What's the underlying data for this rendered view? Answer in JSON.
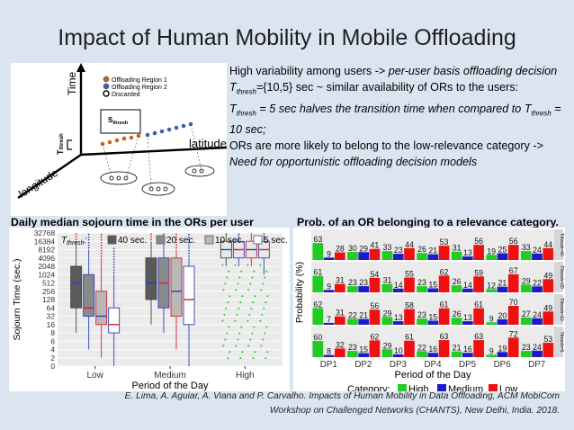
{
  "slide": {
    "title": "Impact of Human Mobility in Mobile Offloading",
    "bullets": [
      {
        "pre": "High variability among users -> ",
        "em": "per-user basis offloading decision"
      },
      {
        "t": "T",
        "sub": "thresh",
        "rest": "={10,5} sec ~ similar availability of ORs to the users:"
      },
      {
        "t": "T",
        "sub": "thresh",
        "rest": " = 5 sec halves the transition time when compared to ",
        "t2": "T",
        "sub2": "thresh",
        "rest2": " = 10 sec;"
      },
      {
        "pre": "ORs are more likely to belong to the low-relevance category -> ",
        "em": "Need for opportunistic offloading decision models"
      }
    ],
    "citation_line1": "E. Lima, A. Aguiar, A. Viana and P. Carvalho. Impacts of Human Mobility in Data Offloading, ACM MobiCom",
    "citation_line2": "Workshop on Challenged Networks (CHANTS), New Delhi, India. 2018."
  },
  "diagram": {
    "legend": [
      "Offloading Region 1",
      "Offloading Region 2",
      "Discarded"
    ],
    "axis_time": "Time",
    "axis_latitude": "latitude",
    "axis_longitude": "longitude",
    "label_tthresh": "T",
    "label_tthresh_sub": "thresh",
    "label_sthresh": "S",
    "label_sthresh_sub": "thresh",
    "colors": {
      "region1": "#c9651e",
      "region2": "#3d5fb8",
      "discarded": "#ffffff"
    }
  },
  "chart_data": [
    {
      "type": "box",
      "title": "Daily median sojourn time in the ORs per user",
      "xlabel": "Period of the Day",
      "ylabel": "Sojourn Time (sec.)",
      "categories": [
        "Low",
        "Medium",
        "High"
      ],
      "y_scale": "log",
      "y_ticks": [
        "0",
        "2",
        "4",
        "6",
        "8",
        "16",
        "32",
        "64",
        "128",
        "256",
        "512",
        "1024",
        "2048",
        "4096",
        "8192",
        "16384",
        "32768"
      ],
      "legend_title": "T",
      "legend_title_sub": "thresh",
      "legend_title_suffix": ":",
      "series": [
        {
          "name": "40 sec.",
          "color": "#5a5a5a"
        },
        {
          "name": "20 sec.",
          "color": "#8a8a8a"
        },
        {
          "name": "10 sec.",
          "color": "#b8b8b8"
        },
        {
          "name": "5 sec.",
          "color": "#ffffff"
        }
      ],
      "boxes": [
        {
          "category": "Low",
          "series": "40 sec.",
          "q1": 64,
          "median": 512,
          "q3": 2048,
          "whisker_low": 8,
          "whisker_high": 16384
        },
        {
          "category": "Low",
          "series": "20 sec.",
          "q1": 32,
          "median": 64,
          "q3": 1024,
          "whisker_low": 4,
          "whisker_high": 8192
        },
        {
          "category": "Low",
          "series": "10 sec.",
          "q1": 16,
          "median": 32,
          "q3": 256,
          "whisker_low": 2,
          "whisker_high": 4096
        },
        {
          "category": "Low",
          "series": "5 sec.",
          "q1": 8,
          "median": 16,
          "q3": 64,
          "whisker_low": 0,
          "whisker_high": 1024
        },
        {
          "category": "Medium",
          "series": "40 sec.",
          "q1": 128,
          "median": 512,
          "q3": 4096,
          "whisker_low": 16,
          "whisker_high": 16384
        },
        {
          "category": "Medium",
          "series": "20 sec.",
          "q1": 64,
          "median": 512,
          "q3": 4096,
          "whisker_low": 8,
          "whisker_high": 16384
        },
        {
          "category": "Medium",
          "series": "10 sec.",
          "q1": 32,
          "median": 256,
          "q3": 4096,
          "whisker_low": 4,
          "whisker_high": 8192
        },
        {
          "category": "Medium",
          "series": "5 sec.",
          "q1": 16,
          "median": 128,
          "q3": 2048,
          "whisker_low": 0,
          "whisker_high": 4096
        },
        {
          "category": "High",
          "series": "40 sec.",
          "q1": 4096,
          "median": 8192,
          "q3": 16384,
          "whisker_low": 2048,
          "whisker_high": 32768
        },
        {
          "category": "High",
          "series": "20 sec.",
          "q1": 4096,
          "median": 8192,
          "q3": 16384,
          "whisker_low": 2048,
          "whisker_high": 32768
        },
        {
          "category": "High",
          "series": "10 sec.",
          "q1": 4096,
          "median": 8192,
          "q3": 16384,
          "whisker_low": 2048,
          "whisker_high": 32768
        },
        {
          "category": "High",
          "series": "5 sec.",
          "q1": 4096,
          "median": 8192,
          "q3": 16384,
          "whisker_low": 1024,
          "whisker_high": 32768
        }
      ]
    },
    {
      "type": "bar",
      "title": "Prob. of an OR belonging to a relevance category.",
      "xlabel": "Period of the Day",
      "ylabel": "Probability (%)",
      "categories": [
        "DP1",
        "DP2",
        "DP3",
        "DP4",
        "DP5",
        "DP6",
        "DP7"
      ],
      "legend_title": "Category:",
      "series_names": [
        "High",
        "Medium",
        "Low"
      ],
      "series_colors": [
        "#22cc22",
        "#1b1bcc",
        "#ee1111"
      ],
      "panels": [
        {
          "label": "Tthresh=40",
          "values": [
            [
              63,
              9,
              28
            ],
            [
              30,
              29,
              41
            ],
            [
              33,
              23,
              44
            ],
            [
              26,
              21,
              53
            ],
            [
              31,
              13,
              56
            ],
            [
              19,
              25,
              56
            ],
            [
              33,
              24,
              44
            ]
          ]
        },
        {
          "label": "Tthresh=20",
          "values": [
            [
              61,
              9,
              31
            ],
            [
              23,
              23,
              54
            ],
            [
              31,
              14,
              55
            ],
            [
              23,
              15,
              62
            ],
            [
              26,
              14,
              59
            ],
            [
              12,
              21,
              67
            ],
            [
              29,
              22,
              49
            ]
          ]
        },
        {
          "label": "Tthresh=10",
          "values": [
            [
              62,
              7,
              31
            ],
            [
              22,
              21,
              56
            ],
            [
              29,
              13,
              58
            ],
            [
              23,
              15,
              61
            ],
            [
              26,
              13,
              61
            ],
            [
              9,
              20,
              70
            ],
            [
              27,
              24,
              49
            ]
          ]
        },
        {
          "label": "Tthresh=5",
          "values": [
            [
              60,
              8,
              32
            ],
            [
              23,
              15,
              62
            ],
            [
              29,
              10,
              61
            ],
            [
              22,
              16,
              63
            ],
            [
              21,
              16,
              63
            ],
            [
              9,
              19,
              72
            ],
            [
              23,
              24,
              53
            ]
          ]
        }
      ]
    }
  ]
}
